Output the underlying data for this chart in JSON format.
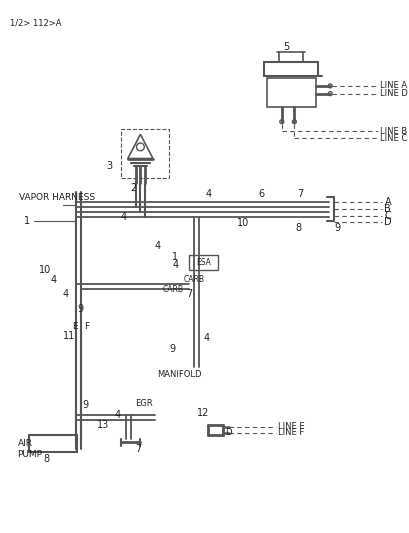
{
  "title": "",
  "ref_number": "1/2> 112>A",
  "bg_color": "#ffffff",
  "line_color": "#555555",
  "text_color": "#222222",
  "fig_width": 4.1,
  "fig_height": 5.33,
  "dpi": 100,
  "labels": {
    "vapor_harness": "VAPOR HARNESS",
    "air_pump": "AIR\nPUMP",
    "manifold": "MANIFOLD",
    "esa": "ESA",
    "carb1": "CARB",
    "carb2": "CARB",
    "egr": "EGR",
    "line_a_top": "LINE A",
    "line_d_top": "LINE D",
    "line_b_top": "LINE B",
    "line_c_top": "LINE C",
    "line_e": "LINE E",
    "line_f": "LINE F",
    "letter_a": "A",
    "letter_b": "B",
    "letter_c": "C",
    "letter_d": "D",
    "ne": "E",
    "nf": "F",
    "nd": "D"
  },
  "numbers": {
    "n1a": "1",
    "n2": "2",
    "n3": "3",
    "n4a": "4",
    "n4b": "4",
    "n4c": "4",
    "n4d": "4",
    "n4e": "4",
    "n4f": "4",
    "n4g": "4",
    "n4h": "4",
    "n5": "5",
    "n6": "6",
    "n7a": "7",
    "n7b": "7",
    "n7c": "7",
    "n8a": "8",
    "n8b": "8",
    "n9a": "9",
    "n9b": "9",
    "n9c": "9",
    "n9d": "9",
    "n10a": "10",
    "n10b": "10",
    "n11": "11",
    "n12": "12",
    "n13": "13",
    "n1b": "1"
  }
}
